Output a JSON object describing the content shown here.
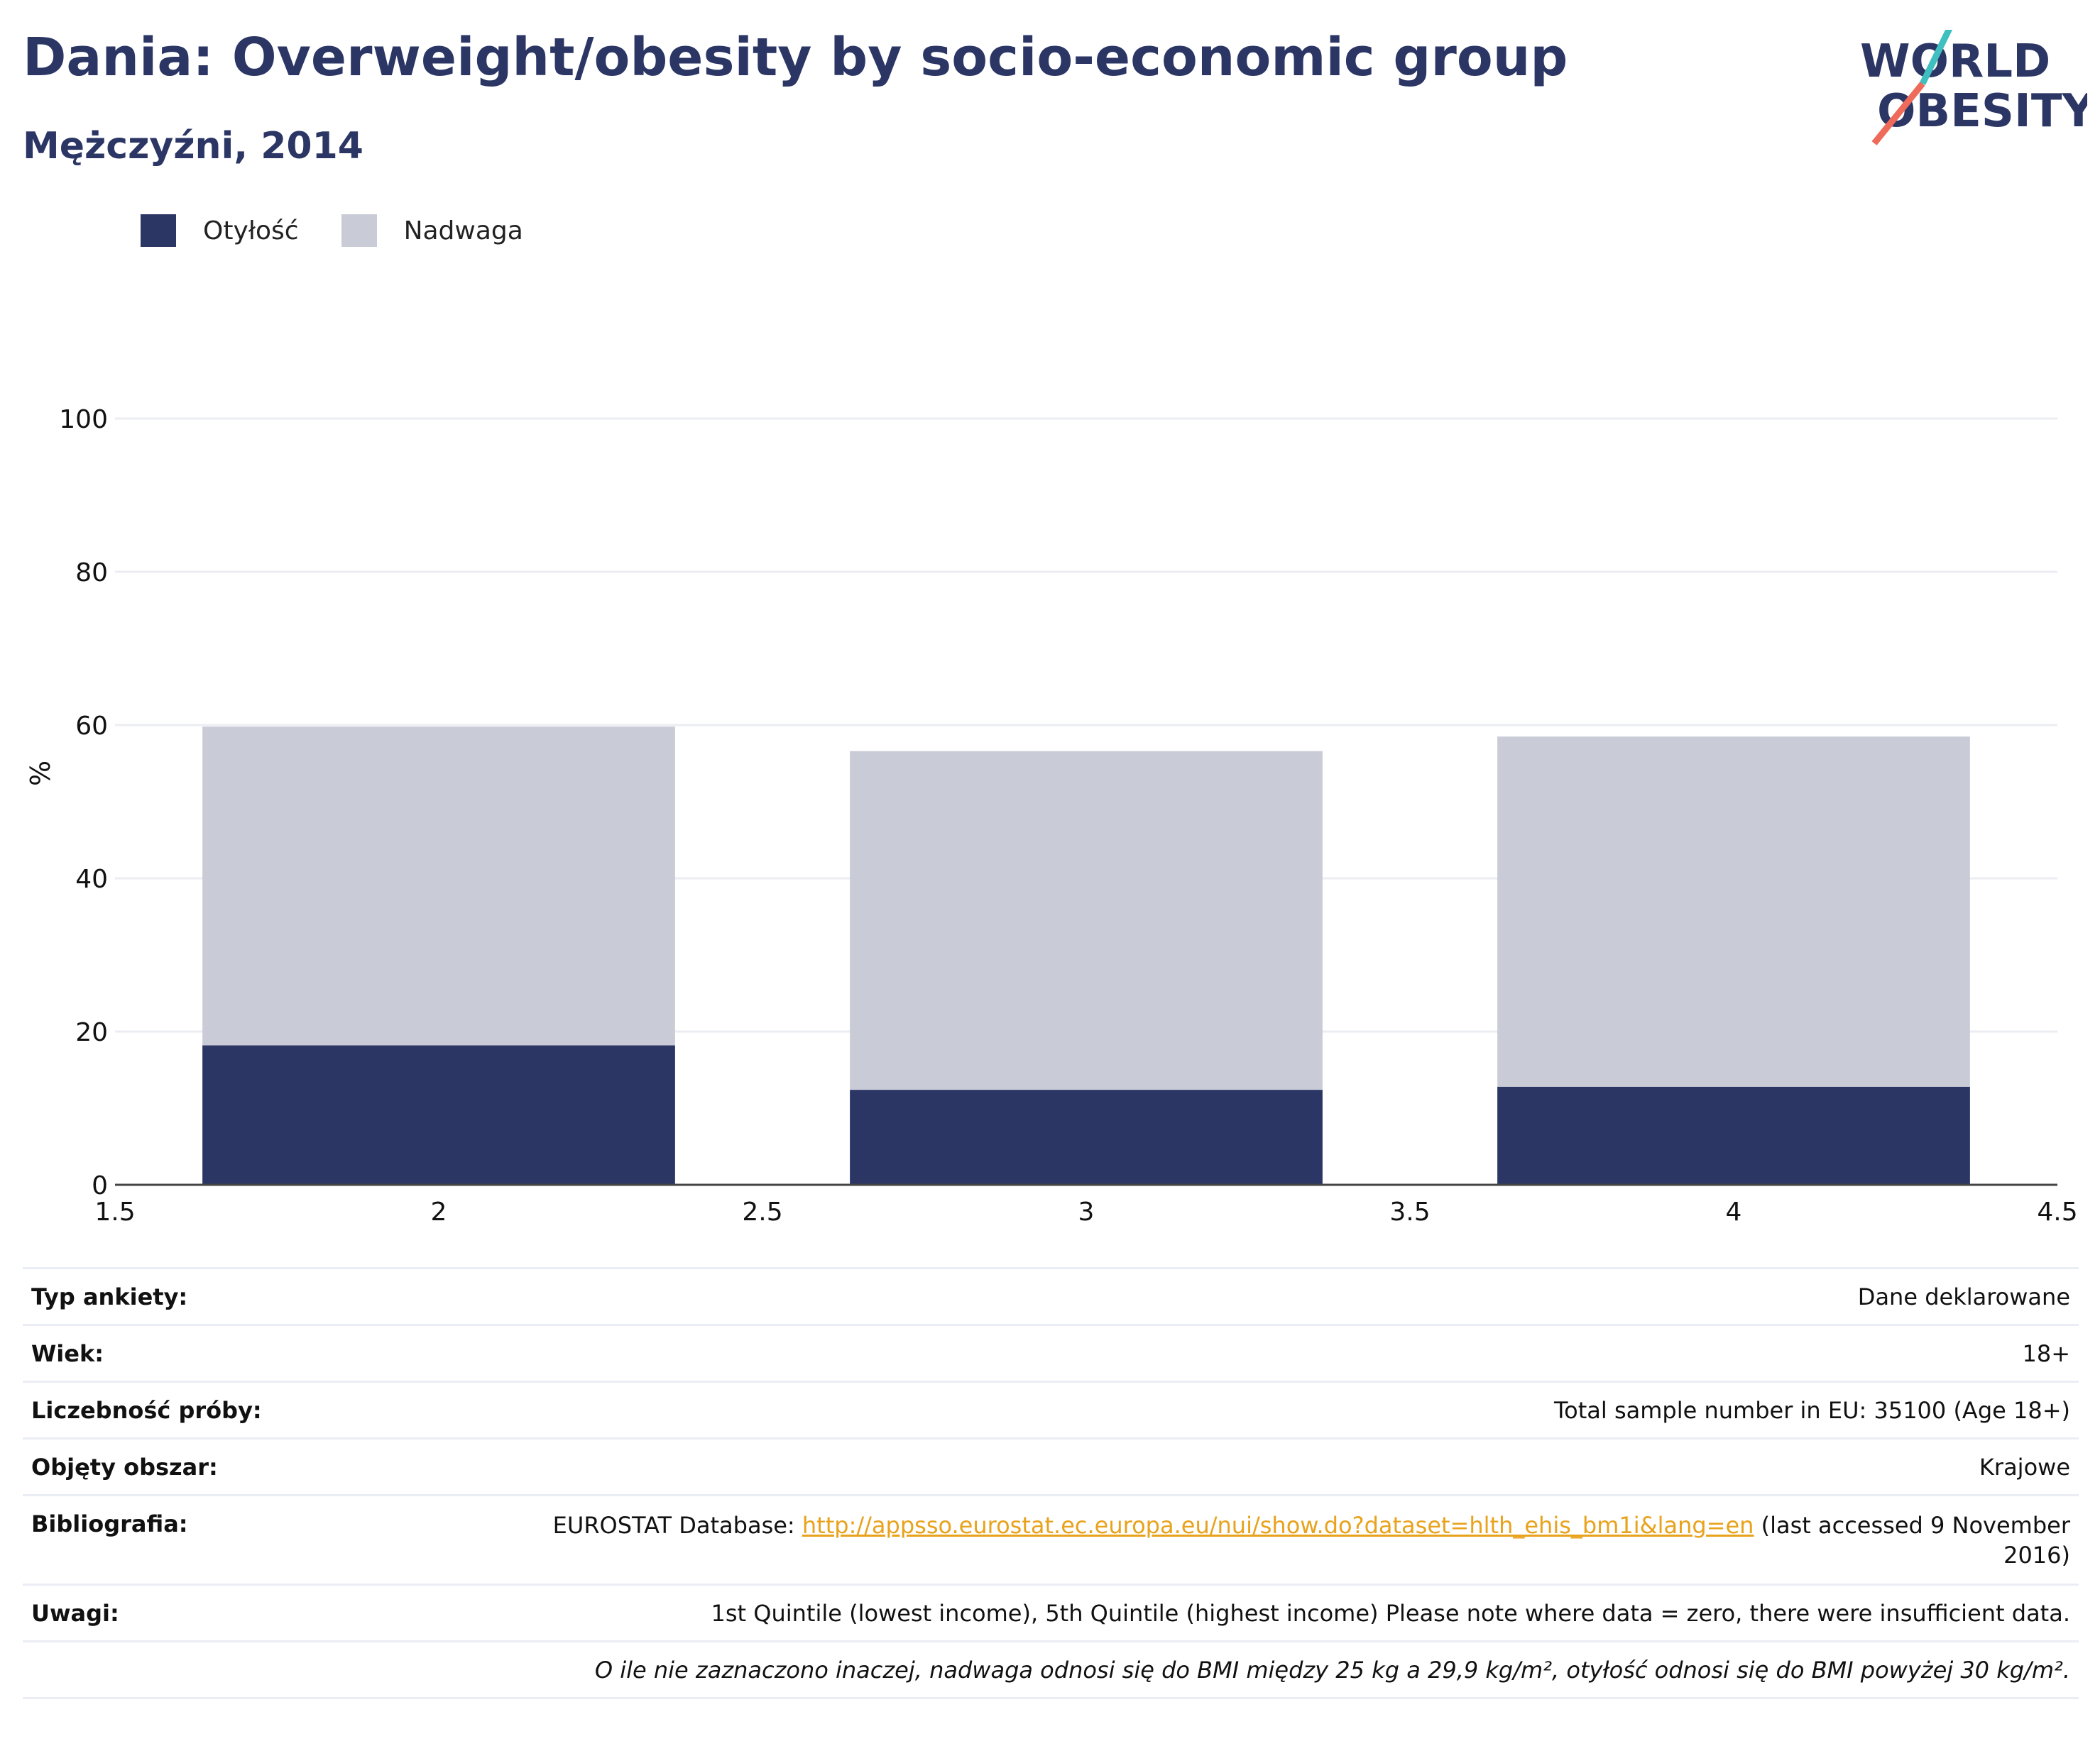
{
  "header": {
    "title": "Dania: Overweight/obesity by socio-economic group",
    "subtitle": "Mężczyźni, 2014"
  },
  "logo": {
    "line1": "WORLD",
    "line2": "OBESITY",
    "accent_teal": "#3fbfbf",
    "accent_coral": "#ee6a5a"
  },
  "chart_data": {
    "type": "bar",
    "stacked": true,
    "x": [
      2,
      3,
      4
    ],
    "series": [
      {
        "name": "Otyłość",
        "values": [
          18.2,
          12.4,
          12.8
        ],
        "color": "#2b3665"
      },
      {
        "name": "Nadwaga",
        "values": [
          41.6,
          44.2,
          45.7
        ],
        "color": "#c9ccd7"
      }
    ],
    "xlim": [
      1.5,
      4.5
    ],
    "xticks": [
      "1.5",
      "2",
      "2.5",
      "3",
      "3.5",
      "4",
      "4.5"
    ],
    "ylim": [
      0,
      100
    ],
    "yticks": [
      "0",
      "20",
      "40",
      "60",
      "80",
      "100"
    ],
    "ylabel": "%",
    "grid": true,
    "legend": "top-left"
  },
  "meta": [
    {
      "key": "Typ ankiety:",
      "value": "Dane deklarowane"
    },
    {
      "key": "Wiek:",
      "value": "18+"
    },
    {
      "key": "Liczebność próby:",
      "value": "Total sample number in EU: 35100 (Age 18+)"
    },
    {
      "key": "Objęty obszar:",
      "value": "Krajowe"
    }
  ],
  "bibliography": {
    "key": "Bibliografia:",
    "prefix": "EUROSTAT Database: ",
    "link": "http://appsso.eurostat.ec.europa.eu/nui/show.do?dataset=hlth_ehis_bm1i&lang=en",
    "suffix": " (last accessed 9 November 2016)"
  },
  "remarks": {
    "key": "Uwagi:",
    "value": "1st Quintile (lowest income), 5th Quintile (highest income) Please note where data = zero, there were insufficient data."
  },
  "footnote": "O ile nie zaznaczono inaczej, nadwaga odnosi się do BMI między 25 kg a 29,9 kg/m², otyłość odnosi się do BMI powyżej 30 kg/m²."
}
